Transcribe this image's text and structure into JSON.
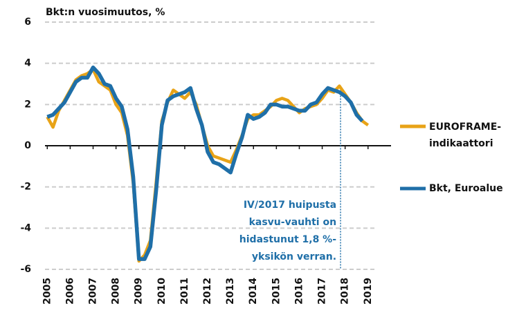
{
  "chart_data": {
    "type": "line",
    "ylabel": "Bkt:n vuosimuutos, %",
    "xlim": [
      2004.9,
      2019.4
    ],
    "xticks": [
      2005,
      2006,
      2007,
      2008,
      2009,
      2010,
      2011,
      2012,
      2013,
      2014,
      2015,
      2016,
      2017,
      2018,
      2019
    ],
    "ylim": [
      -6,
      6
    ],
    "yticks": [
      -6,
      -4,
      -2,
      0,
      2,
      4,
      6
    ],
    "grid": true,
    "legend": "right",
    "series": [
      {
        "name": "EUROFRAME-indikaattori",
        "color": "#e8a317",
        "x": [
          2005,
          2005.25,
          2005.5,
          2005.75,
          2006,
          2006.25,
          2006.5,
          2006.75,
          2007,
          2007.25,
          2007.5,
          2007.75,
          2008,
          2008.25,
          2008.5,
          2008.75,
          2009,
          2009.25,
          2009.5,
          2009.75,
          2010,
          2010.25,
          2010.5,
          2010.75,
          2011,
          2011.25,
          2011.5,
          2011.75,
          2012,
          2012.25,
          2012.5,
          2012.75,
          2013,
          2013.25,
          2013.5,
          2013.75,
          2014,
          2014.25,
          2014.5,
          2014.75,
          2015,
          2015.25,
          2015.5,
          2015.75,
          2016,
          2016.25,
          2016.5,
          2016.75,
          2017,
          2017.25,
          2017.5,
          2017.75,
          2018,
          2018.25,
          2018.5,
          2018.75,
          2019
        ],
        "values": [
          1.4,
          0.9,
          1.7,
          2.2,
          2.7,
          3.2,
          3.4,
          3.5,
          3.7,
          3.1,
          2.9,
          2.7,
          2.0,
          1.6,
          0.5,
          -1.8,
          -5.6,
          -5.3,
          -4.6,
          -1.8,
          1.2,
          2.1,
          2.7,
          2.5,
          2.3,
          2.6,
          2.0,
          1.0,
          0.0,
          -0.5,
          -0.6,
          -0.7,
          -0.8,
          -0.2,
          0.5,
          1.3,
          1.5,
          1.5,
          1.7,
          1.9,
          2.2,
          2.3,
          2.2,
          1.9,
          1.6,
          1.8,
          1.9,
          2.0,
          2.3,
          2.7,
          2.6,
          2.9,
          2.5,
          2.1,
          1.6,
          1.2,
          1.0
        ]
      },
      {
        "name": "Bkt, Euroalue",
        "color": "#1f6fa8",
        "x": [
          2005,
          2005.25,
          2005.5,
          2005.75,
          2006,
          2006.25,
          2006.5,
          2006.75,
          2007,
          2007.25,
          2007.5,
          2007.75,
          2008,
          2008.25,
          2008.5,
          2008.75,
          2009,
          2009.25,
          2009.5,
          2009.75,
          2010,
          2010.25,
          2010.5,
          2010.75,
          2011,
          2011.25,
          2011.5,
          2011.75,
          2012,
          2012.25,
          2012.5,
          2012.75,
          2013,
          2013.25,
          2013.5,
          2013.75,
          2014,
          2014.25,
          2014.5,
          2014.75,
          2015,
          2015.25,
          2015.5,
          2015.75,
          2016,
          2016.25,
          2016.5,
          2016.75,
          2017,
          2017.25,
          2017.5,
          2017.75,
          2018,
          2018.25,
          2018.5,
          2018.75
        ],
        "values": [
          1.4,
          1.5,
          1.8,
          2.1,
          2.6,
          3.1,
          3.3,
          3.3,
          3.8,
          3.5,
          3.0,
          2.9,
          2.3,
          1.9,
          0.8,
          -1.5,
          -5.5,
          -5.5,
          -4.9,
          -2.2,
          1.0,
          2.2,
          2.4,
          2.5,
          2.6,
          2.8,
          1.8,
          1.0,
          -0.3,
          -0.8,
          -0.9,
          -1.1,
          -1.3,
          -0.4,
          0.4,
          1.5,
          1.3,
          1.4,
          1.6,
          2.0,
          2.0,
          1.9,
          1.9,
          1.8,
          1.7,
          1.7,
          2.0,
          2.1,
          2.5,
          2.8,
          2.7,
          2.6,
          2.4,
          2.1,
          1.5,
          1.2
        ]
      }
    ],
    "annotation": {
      "x": 2017.8,
      "lines": [
        "IV/2017 huipusta",
        "kasvu-vauhti on",
        "hidastunut 1,8 %-",
        "yksikön verran."
      ]
    }
  }
}
